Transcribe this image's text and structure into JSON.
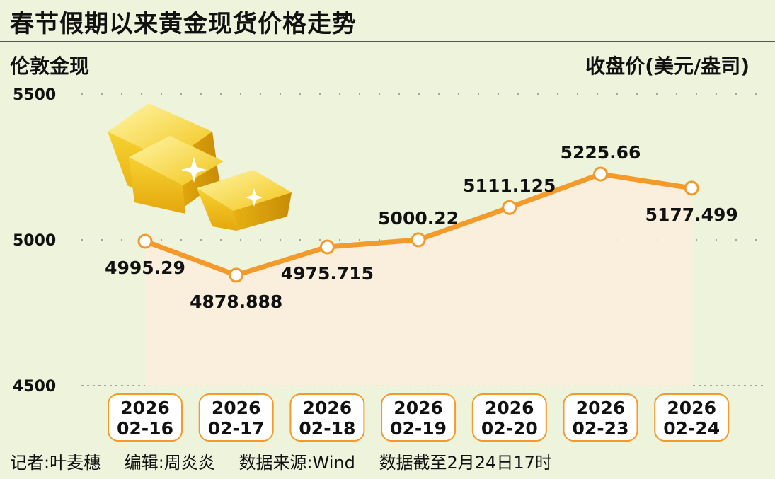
{
  "title": "春节假期以来黄金现货价格走势",
  "footer": {
    "reporter": "记者:叶麦穗",
    "editor": "编辑:周炎炎",
    "source": "数据来源:Wind",
    "cutoff": "数据截至2月24日17时"
  },
  "colors": {
    "line": "#f39a2b",
    "area": "#fbeedd",
    "pill_border": "#f39a2b",
    "background": "#eef3dc"
  },
  "chart_data": {
    "type": "line",
    "title": "春节假期以来黄金现货价格走势",
    "ylabel_left": "伦敦金现",
    "ylabel_right": "收盘价(美元/盎司)",
    "ylim": [
      4500,
      5500
    ],
    "yticks": [
      "5500",
      "5000",
      "4500"
    ],
    "categories": [
      {
        "year": "2026",
        "date": "02-16"
      },
      {
        "year": "2026",
        "date": "02-17"
      },
      {
        "year": "2026",
        "date": "02-18"
      },
      {
        "year": "2026",
        "date": "02-19"
      },
      {
        "year": "2026",
        "date": "02-20"
      },
      {
        "year": "2026",
        "date": "02-23"
      },
      {
        "year": "2026",
        "date": "02-24"
      }
    ],
    "values": [
      4995.29,
      4878.888,
      4975.715,
      5000.22,
      5111.125,
      5225.66,
      5177.499
    ],
    "labels": [
      "4995.29",
      "4878.888",
      "4975.715",
      "5000.22",
      "5111.125",
      "5225.66",
      "5177.499"
    ],
    "grid": true
  }
}
